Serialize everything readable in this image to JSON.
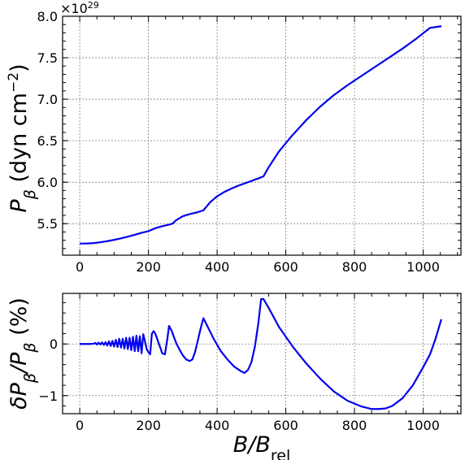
{
  "chart_data": [
    {
      "type": "line",
      "ylabel": "P_β (dyn cm⁻²)",
      "ylabel_parts": {
        "symbol": "P",
        "sub": "β",
        "unit_pre": " (dyn cm",
        "unit_sup": "−2",
        "unit_post": ")"
      },
      "y_multiplier": {
        "base": "×10",
        "exp": "29"
      },
      "xlim": [
        -50,
        1110
      ],
      "ylim": [
        5.12,
        8.0
      ],
      "x_ticks": [
        0,
        200,
        400,
        600,
        800,
        1000
      ],
      "x_tick_labels": [
        "0",
        "200",
        "400",
        "600",
        "800",
        "1000"
      ],
      "y_ticks": [
        5.5,
        6.0,
        6.5,
        7.0,
        7.5,
        8.0
      ],
      "y_tick_labels": [
        "5.5",
        "6.0",
        "6.5",
        "7.0",
        "7.5",
        "8.0"
      ],
      "grid": true,
      "color": "#0000ee",
      "series": [
        {
          "x": [
            0,
            20,
            40,
            60,
            80,
            100,
            120,
            140,
            160,
            180,
            200,
            220,
            240,
            260,
            270,
            280,
            300,
            320,
            340,
            360,
            380,
            400,
            420,
            440,
            460,
            480,
            500,
            520,
            535,
            550,
            580,
            620,
            660,
            700,
            740,
            780,
            820,
            860,
            900,
            940,
            980,
            1020,
            1053
          ],
          "y": [
            5.26,
            5.261,
            5.266,
            5.276,
            5.289,
            5.305,
            5.323,
            5.343,
            5.365,
            5.39,
            5.41,
            5.445,
            5.47,
            5.488,
            5.5,
            5.54,
            5.59,
            5.615,
            5.635,
            5.66,
            5.76,
            5.83,
            5.88,
            5.92,
            5.955,
            5.985,
            6.015,
            6.045,
            6.07,
            6.18,
            6.37,
            6.57,
            6.75,
            6.91,
            7.05,
            7.17,
            7.28,
            7.39,
            7.5,
            7.61,
            7.73,
            7.86,
            7.88
          ]
        }
      ]
    },
    {
      "type": "line",
      "ylabel": "δP_β/P_β (%)",
      "ylabel_parts": {
        "pre": "δP",
        "sub1": "β",
        "mid": "/P",
        "sub2": "β",
        "post": " (%)"
      },
      "xlabel": "B/B_rel",
      "xlabel_parts": {
        "main": "B/B",
        "sub": "rel"
      },
      "xlim": [
        -50,
        1110
      ],
      "ylim": [
        -1.35,
        0.98
      ],
      "x_ticks": [
        0,
        200,
        400,
        600,
        800,
        1000
      ],
      "x_tick_labels": [
        "0",
        "200",
        "400",
        "600",
        "800",
        "1000"
      ],
      "y_ticks": [
        -1,
        0
      ],
      "y_tick_labels": [
        "−1",
        "0"
      ],
      "grid": true,
      "color": "#0000ee",
      "series": [
        {
          "x": [
            0,
            30,
            40,
            45,
            50,
            55,
            60,
            65,
            70,
            75,
            80,
            85,
            90,
            95,
            100,
            105,
            110,
            115,
            120,
            125,
            130,
            135,
            140,
            145,
            150,
            155,
            160,
            165,
            170,
            175,
            180,
            185,
            195,
            200,
            205,
            210,
            215,
            220,
            228,
            235,
            240,
            248,
            255,
            260,
            268,
            275,
            282,
            290,
            300,
            310,
            320,
            328,
            336,
            345,
            352,
            360,
            375,
            390,
            410,
            430,
            450,
            470,
            480,
            490,
            500,
            510,
            520,
            528,
            535,
            550,
            580,
            620,
            660,
            700,
            740,
            780,
            820,
            850,
            870,
            890,
            910,
            940,
            970,
            1000,
            1020,
            1035,
            1045,
            1053
          ],
          "y": [
            0.0,
            0.0,
            0.005,
            0.02,
            -0.01,
            0.025,
            -0.01,
            0.03,
            -0.02,
            0.035,
            -0.03,
            0.05,
            -0.04,
            0.06,
            -0.05,
            0.08,
            -0.06,
            0.1,
            -0.07,
            0.1,
            -0.09,
            0.12,
            -0.1,
            0.12,
            -0.12,
            0.14,
            -0.14,
            0.16,
            -0.14,
            0.15,
            -0.18,
            0.19,
            -0.1,
            -0.16,
            -0.2,
            0.2,
            0.25,
            0.2,
            0.05,
            -0.08,
            -0.18,
            -0.2,
            0.1,
            0.35,
            0.25,
            0.12,
            0.0,
            -0.1,
            -0.22,
            -0.3,
            -0.33,
            -0.3,
            -0.15,
            0.1,
            0.3,
            0.5,
            0.3,
            0.1,
            -0.13,
            -0.3,
            -0.44,
            -0.53,
            -0.56,
            -0.5,
            -0.35,
            -0.05,
            0.4,
            0.87,
            0.87,
            0.7,
            0.33,
            -0.05,
            -0.38,
            -0.67,
            -0.92,
            -1.1,
            -1.21,
            -1.26,
            -1.26,
            -1.25,
            -1.2,
            -1.05,
            -0.8,
            -0.45,
            -0.2,
            0.08,
            0.3,
            0.48
          ]
        }
      ]
    }
  ]
}
